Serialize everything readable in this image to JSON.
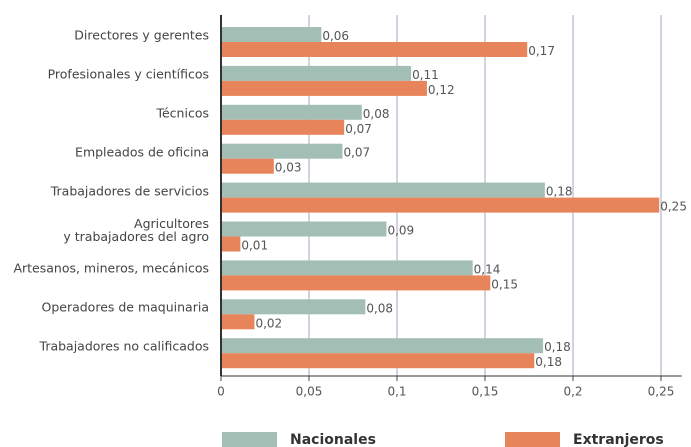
{
  "chart_data": {
    "type": "bar",
    "orientation": "horizontal",
    "categories": [
      "Directores y gerentes",
      "Profesionales y científicos",
      "Técnicos",
      "Empleados de oficina",
      "Trabajadores de servicios",
      "Agricultores\ny trabajadores del agro",
      "Artesanos, mineros, mecánicos",
      "Operadores de maquinaria",
      "Trabajadores no calificados"
    ],
    "series": [
      {
        "name": "Nacionales",
        "color": "#a3bfb5",
        "values": [
          0.057,
          0.108,
          0.08,
          0.069,
          0.184,
          0.094,
          0.143,
          0.082,
          0.183
        ],
        "value_labels": [
          "0,06",
          "0,11",
          "0,08",
          "0,07",
          "0,18",
          "0,09",
          "0,14",
          "0,08",
          "0,18"
        ]
      },
      {
        "name": "Extranjeros",
        "color": "#e8845a",
        "values": [
          0.174,
          0.117,
          0.07,
          0.03,
          0.249,
          0.011,
          0.153,
          0.019,
          0.178
        ],
        "value_labels": [
          "0,17",
          "0,12",
          "0,07",
          "0,03",
          "0,25",
          "0,01",
          "0,15",
          "0,02",
          "0,18"
        ]
      }
    ],
    "xlim": [
      0,
      0.26
    ],
    "xticks": [
      0,
      {
        "value": 0.05,
        "label": "0,05"
      },
      {
        "value": 0.1,
        "label": "0,1"
      },
      {
        "value": 0.15,
        "label": "0,15"
      },
      {
        "value": 0.2,
        "label": "0,2"
      },
      {
        "value": 0.25,
        "label": "0,25"
      }
    ],
    "grid": true,
    "legend": "bottom"
  }
}
